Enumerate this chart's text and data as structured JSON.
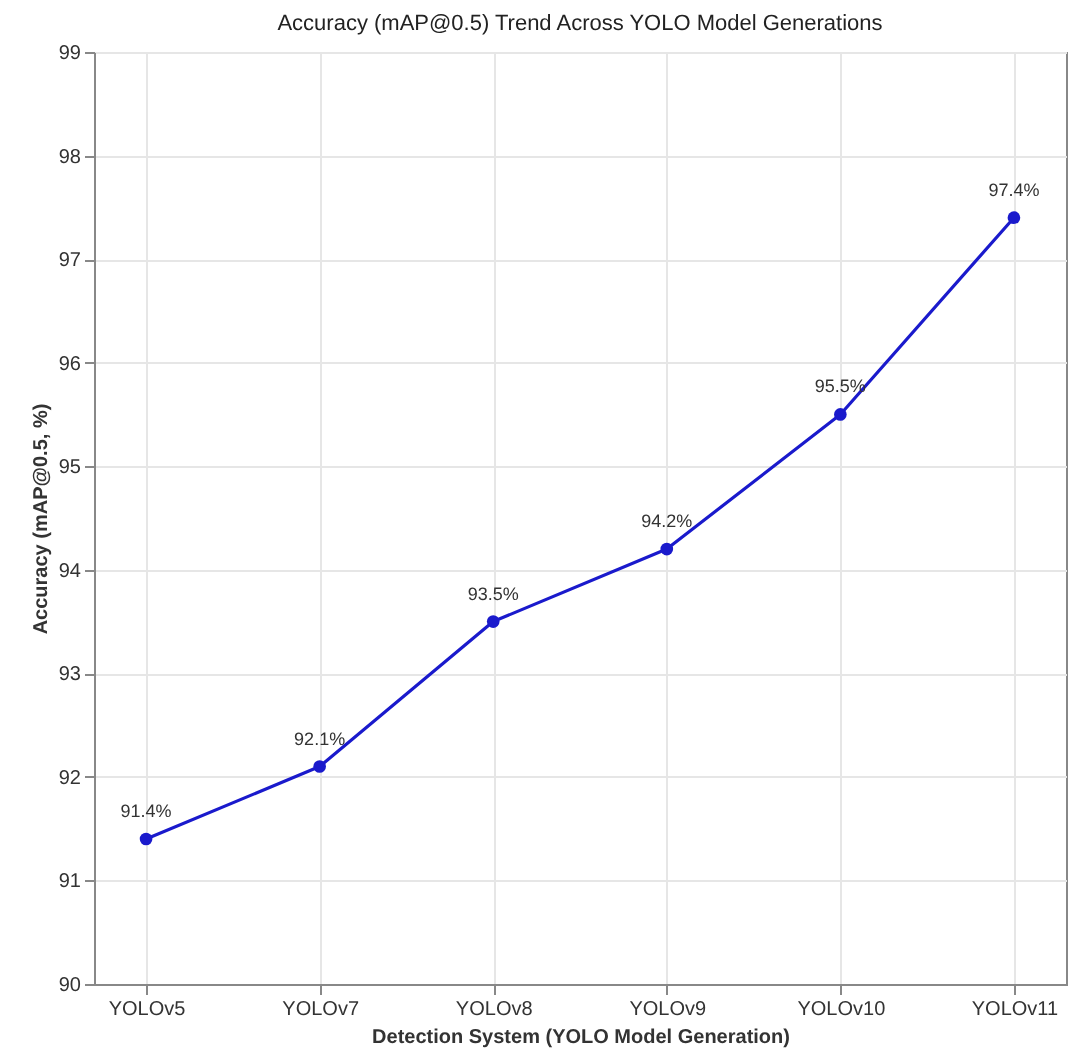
{
  "chart_data": {
    "type": "line",
    "title": "Accuracy (mAP@0.5) Trend Across YOLO Model Generations",
    "xlabel": "Detection System (YOLO Model Generation)",
    "ylabel": "Accuracy (mAP@0.5, %)",
    "categories": [
      "YOLOv5",
      "YOLOv7",
      "YOLOv8",
      "YOLOv9",
      "YOLOv10",
      "YOLOv11"
    ],
    "series": [
      {
        "color": "#1a1acc",
        "values": [
          91.4,
          92.1,
          93.5,
          94.2,
          95.5,
          97.4
        ],
        "value_labels": [
          "91.4%",
          "92.1%",
          "93.5%",
          "94.2%",
          "95.5%",
          "97.4%"
        ]
      }
    ],
    "ylim": [
      90,
      99
    ],
    "yticks": [
      90,
      91,
      92,
      93,
      94,
      95,
      96,
      97,
      98,
      99
    ],
    "grid": true,
    "marker": "circle",
    "line_style": "solid"
  }
}
